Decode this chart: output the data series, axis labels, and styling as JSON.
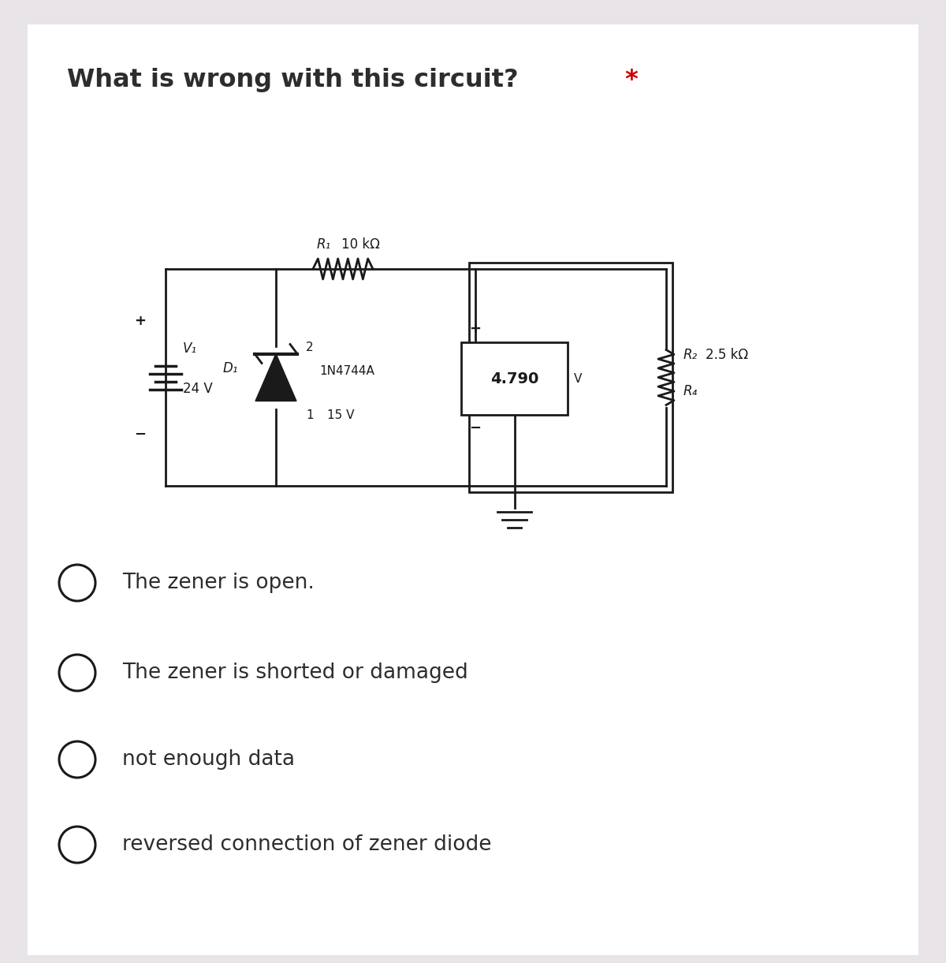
{
  "title": "What is wrong with this circuit?",
  "title_star": " *",
  "bg_color": "#e8e4e8",
  "panel_color": "#ffffff",
  "text_color": "#2d2d2d",
  "red_color": "#cc0000",
  "options": [
    "The zener is open.",
    "The zener is shorted or damaged",
    "not enough data",
    "reversed connection of zener diode"
  ],
  "v1_label": "V₁",
  "v1_value": "24 V",
  "r1_label": "R₁",
  "r1_value": "10 kΩ",
  "d1_label": "D₁",
  "d1_model": "1N4744A",
  "d1_voltage": "15 V",
  "d1_pin2": "2",
  "d1_pin1": "1",
  "voltmeter_value": "4.790",
  "voltmeter_unit": "V",
  "r2_label": "R₂",
  "r2_value": "2.5 kΩ",
  "rl_label": "R₄"
}
